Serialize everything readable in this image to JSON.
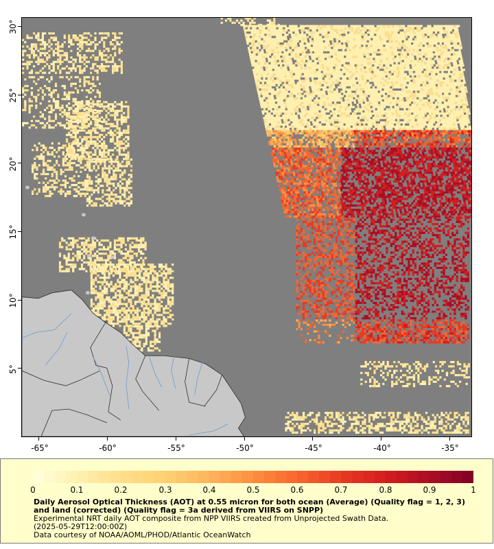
{
  "map": {
    "lon_ticks": [
      -65,
      -60,
      -55,
      -50,
      -45,
      -40,
      -35
    ],
    "lat_ticks": [
      5,
      10,
      15,
      20,
      25,
      30
    ],
    "lon_labels": [
      "-65°",
      "-60°",
      "-55°",
      "-50°",
      "-45°",
      "-40°",
      "-35°"
    ],
    "lat_labels": [
      "5°",
      "10°",
      "15°",
      "20°",
      "25°",
      "30°"
    ],
    "extent": {
      "lon_min": -66.2,
      "lon_max": -33.4,
      "lat_min": 0.0,
      "lat_max": 30.6
    },
    "colors": {
      "no_data": "#7f7f7f",
      "land": "#c8c8c8",
      "border": "#2b2b2b",
      "river": "#6a9ad0"
    }
  },
  "legend": {
    "colorbar_min": 0,
    "colorbar_max": 1,
    "colorbar_labels": [
      "0",
      "0.1",
      "0.2",
      "0.3",
      "0.4",
      "0.5",
      "0.6",
      "0.7",
      "0.8",
      "0.9",
      "1"
    ],
    "colorbar_colors": [
      "#ffffe0",
      "#fff0b0",
      "#ffdf8c",
      "#fed072",
      "#feb45c",
      "#fd8e40",
      "#f8662e",
      "#e83a22",
      "#d31d1e",
      "#ab0e24",
      "#800026"
    ],
    "title": "Daily Aerosol Optical Thickness (AOT) at 0.55 micron for both ocean (Average) (Quality flag = 1, 2, 3) and land (corrected) (Quality flag = 3a derived from VIIRS on SNPP)",
    "line2": "Experimental NRT daily AOT composite from NPP VIIRS created from Unprojected Swath Data.",
    "line3": "(2025-05-29T12:00:00Z)",
    "line4": "Data courtesy of NOAA/AOML/PHOD/Atlantic OceanWatch",
    "background": "#ffffcc"
  }
}
